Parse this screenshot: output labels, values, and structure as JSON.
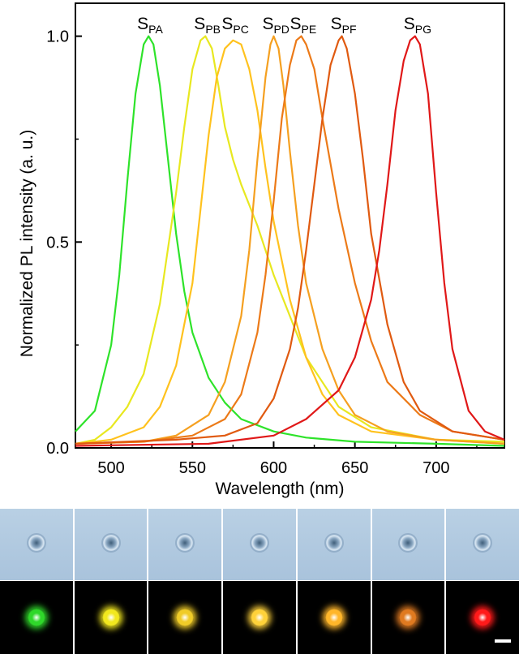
{
  "chart_data": {
    "type": "line",
    "title": "",
    "xlabel": "Wavelength (nm)",
    "ylabel": "Normalized PL intensity (a. u.)",
    "xlim": [
      478,
      742
    ],
    "ylim": [
      0,
      1.08
    ],
    "xticks": [
      500,
      550,
      600,
      650,
      700
    ],
    "yticks": [
      0.0,
      0.5,
      1.0
    ],
    "ytick_labels": [
      "0.0",
      "0.5",
      "1.0"
    ],
    "grid": false,
    "legend": "none",
    "series": [
      {
        "name": "S",
        "sub": "PA",
        "color": "#2ee32a",
        "x": [
          478,
          490,
          500,
          505,
          510,
          515,
          520,
          523,
          526,
          530,
          535,
          540,
          545,
          550,
          560,
          570,
          580,
          600,
          620,
          650,
          700,
          742
        ],
        "y": [
          0.04,
          0.09,
          0.25,
          0.42,
          0.65,
          0.86,
          0.98,
          1.0,
          0.98,
          0.88,
          0.7,
          0.52,
          0.38,
          0.28,
          0.17,
          0.11,
          0.07,
          0.04,
          0.025,
          0.015,
          0.01,
          0.005
        ]
      },
      {
        "name": "S",
        "sub": "PB",
        "color": "#e8e820",
        "x": [
          478,
          490,
          500,
          510,
          520,
          530,
          540,
          545,
          550,
          555,
          558,
          562,
          566,
          570,
          575,
          580,
          590,
          600,
          610,
          620,
          640,
          660,
          700,
          742
        ],
        "y": [
          0.01,
          0.02,
          0.05,
          0.1,
          0.18,
          0.35,
          0.62,
          0.78,
          0.92,
          0.99,
          1.0,
          0.97,
          0.88,
          0.78,
          0.7,
          0.64,
          0.54,
          0.42,
          0.32,
          0.22,
          0.1,
          0.05,
          0.02,
          0.015
        ]
      },
      {
        "name": "S",
        "sub": "PC",
        "color": "#ffc21e",
        "x": [
          478,
          500,
          520,
          530,
          540,
          550,
          555,
          560,
          565,
          570,
          575,
          580,
          585,
          590,
          595,
          600,
          610,
          620,
          630,
          640,
          660,
          700,
          742
        ],
        "y": [
          0.01,
          0.02,
          0.05,
          0.1,
          0.2,
          0.4,
          0.58,
          0.76,
          0.9,
          0.97,
          0.99,
          0.98,
          0.92,
          0.82,
          0.68,
          0.55,
          0.36,
          0.22,
          0.13,
          0.08,
          0.04,
          0.02,
          0.01
        ]
      },
      {
        "name": "S",
        "sub": "PD",
        "color": "#f5a020",
        "x": [
          478,
          520,
          540,
          560,
          570,
          580,
          585,
          590,
          595,
          598,
          600,
          603,
          606,
          610,
          615,
          620,
          630,
          640,
          650,
          670,
          700,
          742
        ],
        "y": [
          0.01,
          0.015,
          0.03,
          0.08,
          0.16,
          0.32,
          0.48,
          0.7,
          0.9,
          0.98,
          1.0,
          0.97,
          0.88,
          0.72,
          0.54,
          0.4,
          0.24,
          0.14,
          0.08,
          0.04,
          0.02,
          0.01
        ]
      },
      {
        "name": "S",
        "sub": "PE",
        "color": "#ec7a18",
        "x": [
          478,
          520,
          550,
          570,
          580,
          590,
          595,
          600,
          605,
          610,
          614,
          617,
          620,
          625,
          630,
          640,
          650,
          660,
          670,
          690,
          710,
          742
        ],
        "y": [
          0.01,
          0.015,
          0.03,
          0.07,
          0.13,
          0.28,
          0.42,
          0.6,
          0.8,
          0.93,
          0.99,
          1.0,
          0.98,
          0.92,
          0.8,
          0.58,
          0.4,
          0.26,
          0.16,
          0.08,
          0.04,
          0.02
        ]
      },
      {
        "name": "S",
        "sub": "PF",
        "color": "#e05a10",
        "x": [
          478,
          540,
          570,
          590,
          600,
          610,
          615,
          620,
          625,
          630,
          635,
          640,
          642,
          645,
          650,
          655,
          660,
          670,
          680,
          690,
          710,
          742
        ],
        "y": [
          0.01,
          0.02,
          0.03,
          0.06,
          0.12,
          0.24,
          0.34,
          0.48,
          0.64,
          0.8,
          0.93,
          0.99,
          1.0,
          0.97,
          0.86,
          0.7,
          0.52,
          0.3,
          0.16,
          0.09,
          0.04,
          0.02
        ]
      },
      {
        "name": "S",
        "sub": "PG",
        "color": "#e01818",
        "x": [
          478,
          560,
          600,
          620,
          640,
          650,
          660,
          665,
          670,
          675,
          680,
          684,
          687,
          690,
          695,
          700,
          705,
          710,
          720,
          730,
          742
        ],
        "y": [
          0.005,
          0.01,
          0.03,
          0.07,
          0.14,
          0.22,
          0.36,
          0.48,
          0.64,
          0.82,
          0.94,
          0.99,
          1.0,
          0.98,
          0.86,
          0.62,
          0.4,
          0.24,
          0.09,
          0.04,
          0.02
        ]
      }
    ]
  },
  "panels": {
    "bright_field": [
      "PA",
      "PB",
      "PC",
      "PD",
      "PE",
      "PF",
      "PG"
    ],
    "fluorescence_colors": [
      "#2fd82a",
      "#f2e81e",
      "#f0cc28",
      "#ffd23a",
      "#ffb62a",
      "#e07a20",
      "#ff1a1a"
    ]
  }
}
